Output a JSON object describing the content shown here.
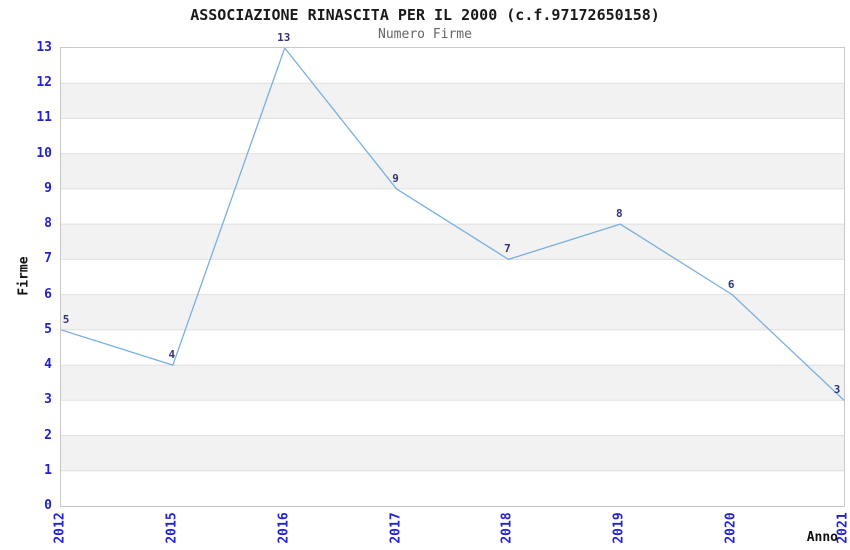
{
  "title": "ASSOCIAZIONE RINASCITA PER IL 2000 (c.f.97172650158)",
  "subtitle": "Numero Firme",
  "chart_data": {
    "type": "line",
    "title": "ASSOCIAZIONE RINASCITA PER IL 2000 (c.f.97172650158)",
    "subtitle": "Numero Firme",
    "categories": [
      "2012",
      "2015",
      "2016",
      "2017",
      "2018",
      "2019",
      "2020",
      "2021"
    ],
    "values": [
      5,
      4,
      13,
      9,
      7,
      8,
      6,
      3
    ],
    "xlabel": "Anno",
    "ylabel": "Firme",
    "ylim": [
      0,
      13
    ],
    "ytick_step": 1,
    "yticks": [
      0,
      1,
      2,
      3,
      4,
      5,
      6,
      7,
      8,
      9,
      10,
      11,
      12,
      13
    ],
    "grid": "horizontal",
    "banded_background": true,
    "legend_position": "none",
    "colors": {
      "line": "#7aafe0",
      "tick_label": "#2222cc",
      "data_label": "#333377",
      "band_fill": "#f2f2f2",
      "grid_line": "#e0e0e0",
      "plot_border": "#c8c8c8",
      "title": "#1a1a1a",
      "subtitle": "#666666",
      "axis_label": "#111111"
    }
  }
}
